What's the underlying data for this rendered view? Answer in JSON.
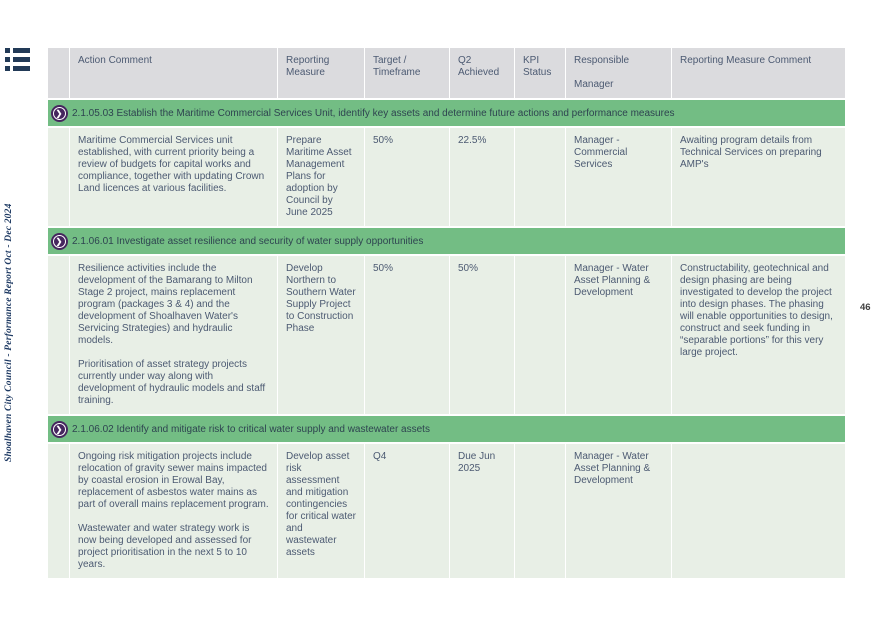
{
  "page": {
    "number": "46",
    "sidebar_text": "Shoalhaven City Council - Performance Report Oct - Dec 2024"
  },
  "icons": {
    "menu_list": "list-menu-bars",
    "chevron_right": "❯",
    "status_dot": "filled-circle"
  },
  "colors": {
    "header_bg": "#dbdbde",
    "section_green": "#73bd84",
    "row_bg": "#e8efe6",
    "text": "#4c5a72",
    "circle_purple": "#45265e",
    "status_red": "#ec1313",
    "status_green": "#3e9b42",
    "sidebar_text": "#1e3a63"
  },
  "table": {
    "headers": [
      "Action Comment",
      "Reporting Measure",
      "Target / Timeframe",
      "Q2 Achieved",
      "KPI Status",
      [
        "Responsible",
        "Manager"
      ],
      "Reporting Measure Comment"
    ]
  },
  "sections": [
    {
      "title": "2.1.05.03 Establish the Maritime Commercial Services Unit, identify key assets and determine future actions and performance measures",
      "row": {
        "action_comment": [
          "Maritime Commercial Services unit established, with current priority being a review of budgets for capital works and compliance, together with updating Crown Land licences at various facilities."
        ],
        "reporting_measure": "Prepare Maritime Asset Management Plans for adoption by Council by June 2025",
        "target": "50%",
        "q2_achieved": "22.5%",
        "kpi_status": "red",
        "responsible_manager": "Manager - Commercial Services",
        "measure_comment": [
          "Awaiting program details from Technical Services on preparing AMP's"
        ]
      }
    },
    {
      "title": "2.1.06.01 Investigate asset resilience and security of water supply opportunities",
      "row": {
        "action_comment": [
          "Resilience activities include the development of the Bamarang to Milton Stage 2 project, mains replacement program (packages 3 & 4) and the development of Shoalhaven Water's Servicing Strategies) and hydraulic models.",
          "Prioritisation of asset strategy projects currently under way along with development of hydraulic models and staff training."
        ],
        "reporting_measure": "Develop Northern to Southern Water Supply Project to Construction Phase",
        "target": "50%",
        "q2_achieved": "50%",
        "kpi_status": "green",
        "responsible_manager": "Manager - Water Asset Planning & Development",
        "measure_comment": [
          "Constructability, geotechnical and design phasing are being investigated to develop the project into design phases. The phasing will enable opportunities to design, construct and seek funding in “separable portions” for this very large project."
        ]
      }
    },
    {
      "title": "2.1.06.02 Identify and mitigate risk to critical water supply and wastewater assets",
      "row": {
        "action_comment": [
          "Ongoing risk mitigation projects include relocation of gravity sewer mains impacted by coastal erosion in Erowal Bay, replacement of asbestos water mains as part of overall mains replacement program.",
          "Wastewater and water strategy work is now being developed and assessed for project prioritisation in the next 5 to 10 years."
        ],
        "reporting_measure": "Develop asset risk assessment and mitigation contingencies for critical water and wastewater assets",
        "target": "Q4",
        "q2_achieved": "Due Jun 2025",
        "kpi_status": "none",
        "responsible_manager": "Manager - Water Asset Planning & Development",
        "measure_comment": []
      }
    }
  ]
}
